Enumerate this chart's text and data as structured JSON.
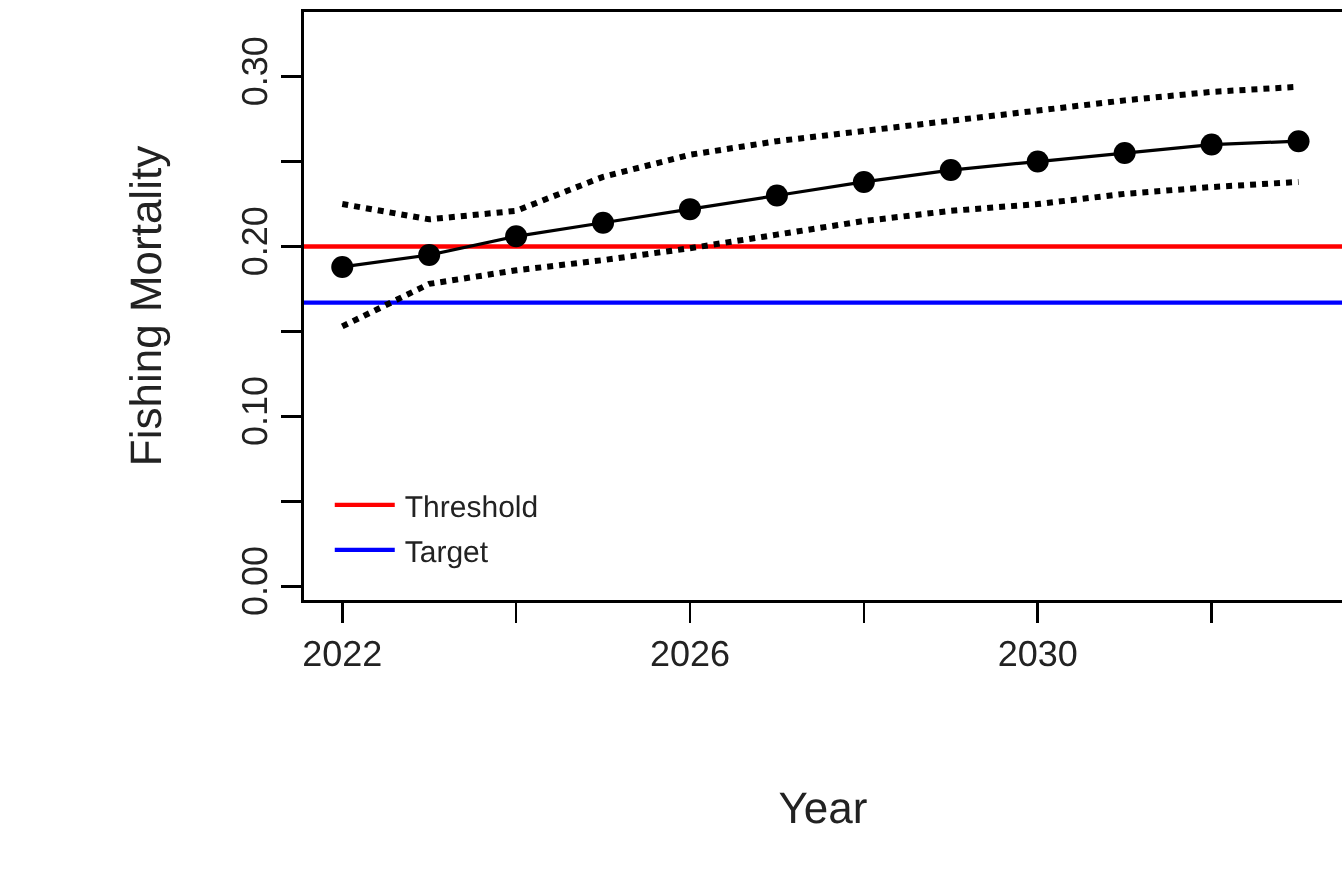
{
  "chart_data": {
    "type": "line",
    "xlabel": "Year",
    "ylabel": "Fishing Mortality",
    "x": [
      2022,
      2023,
      2024,
      2025,
      2026,
      2027,
      2028,
      2029,
      2030,
      2031,
      2032,
      2033
    ],
    "series": [
      {
        "color": "#000000",
        "marker": "circle",
        "line_style": "solid",
        "values": [
          0.188,
          0.195,
          0.206,
          0.214,
          0.222,
          0.23,
          0.238,
          0.245,
          0.25,
          0.255,
          0.26,
          0.262
        ]
      },
      {
        "color": "#000000",
        "marker": "none",
        "line_style": "dotted",
        "values": [
          0.225,
          0.216,
          0.221,
          0.241,
          0.254,
          0.262,
          0.268,
          0.274,
          0.28,
          0.286,
          0.291,
          0.294
        ]
      },
      {
        "color": "#000000",
        "marker": "none",
        "line_style": "dotted",
        "values": [
          0.153,
          0.178,
          0.186,
          0.192,
          0.199,
          0.207,
          0.215,
          0.221,
          0.225,
          0.231,
          0.235,
          0.238
        ]
      }
    ],
    "ref_lines": [
      {
        "axis": "y",
        "value": 0.2,
        "label": "Threshold",
        "color": "#ff0000"
      },
      {
        "axis": "y",
        "value": 0.167,
        "label": "Target",
        "color": "#0000ff"
      }
    ],
    "xlim": [
      2021.56,
      2033.5
    ],
    "xticks": [
      2022,
      {
        "value": 2024,
        "label": null
      },
      2026,
      {
        "value": 2028,
        "label": null
      },
      2030,
      {
        "value": 2032,
        "label": null
      }
    ],
    "ylim": [
      -0.008,
      0.338
    ],
    "yticks": [
      {
        "value": 0,
        "label": "0.00"
      },
      {
        "value": 0.05,
        "label": null
      },
      {
        "value": 0.1,
        "label": "0.10"
      },
      {
        "value": 0.15,
        "label": null
      },
      {
        "value": 0.2,
        "label": "0.20"
      },
      {
        "value": 0.25,
        "label": null
      },
      {
        "value": 0.3,
        "label": "0.30"
      }
    ],
    "legend": "bottom left",
    "grid": false
  }
}
